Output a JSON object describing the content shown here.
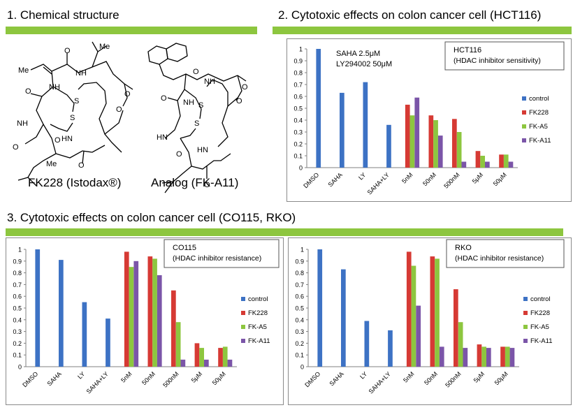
{
  "sections": {
    "s1": "1. Chemical structure",
    "s2": "2. Cytotoxic effects on colon cancer cell (HCT116)",
    "s3": "3. Cytotoxic effects on colon cancer cell (CO115, RKO)"
  },
  "structures": {
    "fk228_caption": "FK228 (Istodax®)",
    "analog_caption": "Analog (FK-A11)",
    "atoms": {
      "O": "O",
      "NH": "NH",
      "HN": "HN",
      "S": "S",
      "Me": "Me"
    }
  },
  "colors": {
    "control": "#3d72c4",
    "FK228": "#d63a34",
    "FK-A5": "#8dc63f",
    "FK-A11": "#7b55a8",
    "section_bar": "#8dc63f"
  },
  "chart_data": [
    {
      "type": "bar",
      "title": "HCT116",
      "subtitle": "(HDAC inhibitor sensitivity)",
      "notes": [
        "SAHA    2.5μM",
        "LY294002 50μM"
      ],
      "categories": [
        "DMSO",
        "SAHA",
        "LY",
        "SAHA+LY",
        "5nM",
        "50nM",
        "500nM",
        "5μM",
        "50μM"
      ],
      "ylim": [
        0,
        1
      ],
      "yticks": [
        "0",
        "0.1",
        "0.2",
        "0.3",
        "0.4",
        "0.5",
        "0.6",
        "0.7",
        "0.8",
        "0.9",
        "1"
      ],
      "legend_position": "right",
      "series": [
        {
          "name": "control",
          "values": [
            1.0,
            0.63,
            0.72,
            0.36,
            null,
            null,
            null,
            null,
            null
          ]
        },
        {
          "name": "FK228",
          "values": [
            null,
            null,
            null,
            null,
            0.53,
            0.44,
            0.41,
            0.14,
            0.11
          ]
        },
        {
          "name": "FK-A5",
          "values": [
            null,
            null,
            null,
            null,
            0.44,
            0.4,
            0.3,
            0.1,
            0.11
          ]
        },
        {
          "name": "FK-A11",
          "values": [
            null,
            null,
            null,
            null,
            0.59,
            0.27,
            0.05,
            0.05,
            0.05
          ]
        }
      ]
    },
    {
      "type": "bar",
      "title": "CO115",
      "subtitle": "(HDAC inhibitor resistance)",
      "notes": [],
      "categories": [
        "DMSO",
        "SAHA",
        "LY",
        "SAHA+LY",
        "5nM",
        "50nM",
        "500nM",
        "5μM",
        "50μM"
      ],
      "ylim": [
        0,
        1
      ],
      "yticks": [
        "0",
        "0.1",
        "0.2",
        "0.3",
        "0.4",
        "0.5",
        "0.6",
        "0.7",
        "0.8",
        "0.9",
        "1"
      ],
      "legend_position": "right",
      "series": [
        {
          "name": "control",
          "values": [
            1.0,
            0.91,
            0.55,
            0.41,
            null,
            null,
            null,
            null,
            null
          ]
        },
        {
          "name": "FK228",
          "values": [
            null,
            null,
            null,
            null,
            0.98,
            0.94,
            0.65,
            0.2,
            0.16
          ]
        },
        {
          "name": "FK-A5",
          "values": [
            null,
            null,
            null,
            null,
            0.85,
            0.92,
            0.38,
            0.16,
            0.17
          ]
        },
        {
          "name": "FK-A11",
          "values": [
            null,
            null,
            null,
            null,
            0.9,
            0.78,
            0.06,
            0.06,
            0.06
          ]
        }
      ]
    },
    {
      "type": "bar",
      "title": "RKO",
      "subtitle": "(HDAC inhibitor resistance)",
      "notes": [],
      "categories": [
        "DMSO",
        "SAHA",
        "LY",
        "SAHA+LY",
        "5nM",
        "50nM",
        "500nM",
        "5μM",
        "50μM"
      ],
      "ylim": [
        0,
        1
      ],
      "yticks": [
        "0",
        "0.1",
        "0.2",
        "0.3",
        "0.4",
        "0.5",
        "0.6",
        "0.7",
        "0.8",
        "0.9",
        "1"
      ],
      "legend_position": "right",
      "series": [
        {
          "name": "control",
          "values": [
            1.0,
            0.83,
            0.39,
            0.31,
            null,
            null,
            null,
            null,
            null
          ]
        },
        {
          "name": "FK228",
          "values": [
            null,
            null,
            null,
            null,
            0.98,
            0.94,
            0.66,
            0.19,
            0.17
          ]
        },
        {
          "name": "FK-A5",
          "values": [
            null,
            null,
            null,
            null,
            0.86,
            0.92,
            0.38,
            0.17,
            0.17
          ]
        },
        {
          "name": "FK-A11",
          "values": [
            null,
            null,
            null,
            null,
            0.52,
            0.17,
            0.16,
            0.16,
            0.16
          ]
        }
      ]
    }
  ]
}
